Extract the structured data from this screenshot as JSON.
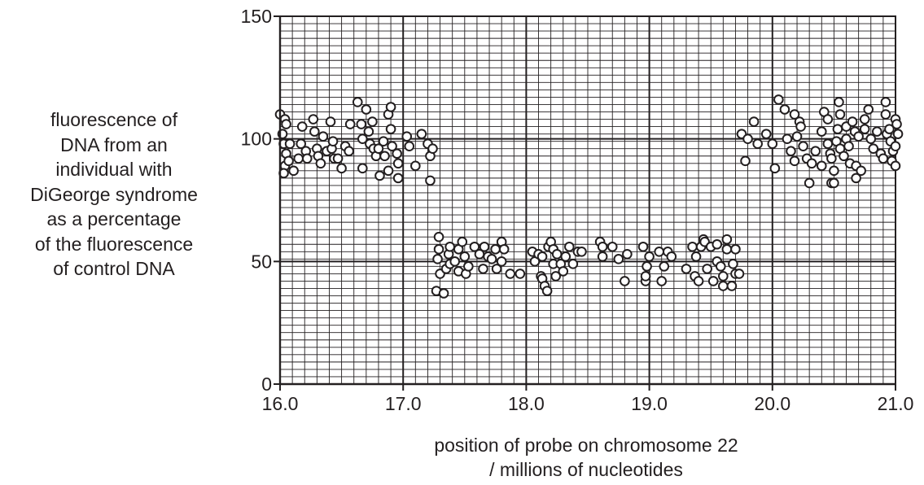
{
  "chart_data": {
    "type": "scatter",
    "title": "",
    "ylabel_lines": [
      "fluorescence of",
      "DNA from an",
      "individual with",
      "DiGeorge syndrome",
      "as a percentage",
      "of the fluorescence",
      "of control DNA"
    ],
    "xlabel_lines": [
      "position of probe on chromosome 22",
      "/ millions of nucleotides"
    ],
    "xlim": [
      16.0,
      21.0
    ],
    "ylim": [
      0,
      150
    ],
    "x_ticks": [
      16.0,
      17.0,
      18.0,
      19.0,
      20.0,
      21.0
    ],
    "x_tick_labels": [
      "16.0",
      "17.0",
      "18.0",
      "19.0",
      "20.0",
      "21.0"
    ],
    "y_ticks": [
      0,
      50,
      100,
      150
    ],
    "y_tick_labels": [
      "0",
      "50",
      "100",
      "150"
    ],
    "grid": true,
    "marker": "open-circle",
    "series": [
      {
        "points": [
          [
            16.0,
            110
          ],
          [
            16.02,
            102
          ],
          [
            16.03,
            98
          ],
          [
            16.04,
            108
          ],
          [
            16.05,
            106
          ],
          [
            16.05,
            94
          ],
          [
            16.04,
            89
          ],
          [
            16.03,
            86
          ],
          [
            16.07,
            91
          ],
          [
            16.08,
            98
          ],
          [
            16.11,
            87
          ],
          [
            16.15,
            92
          ],
          [
            16.17,
            98
          ],
          [
            16.18,
            105
          ],
          [
            16.21,
            95
          ],
          [
            16.22,
            92
          ],
          [
            16.27,
            108
          ],
          [
            16.28,
            103
          ],
          [
            16.3,
            96
          ],
          [
            16.31,
            93
          ],
          [
            16.33,
            90
          ],
          [
            16.35,
            101
          ],
          [
            16.38,
            95
          ],
          [
            16.41,
            107
          ],
          [
            16.42,
            96
          ],
          [
            16.44,
            92
          ],
          [
            16.43,
            99
          ],
          [
            16.47,
            92
          ],
          [
            16.5,
            88
          ],
          [
            16.53,
            97
          ],
          [
            16.57,
            106
          ],
          [
            16.56,
            95
          ],
          [
            16.63,
            115
          ],
          [
            16.66,
            106
          ],
          [
            16.67,
            100
          ],
          [
            16.67,
            88
          ],
          [
            16.7,
            112
          ],
          [
            16.72,
            103
          ],
          [
            16.73,
            98
          ],
          [
            16.75,
            107
          ],
          [
            16.76,
            96
          ],
          [
            16.78,
            93
          ],
          [
            16.8,
            96
          ],
          [
            16.81,
            85
          ],
          [
            16.84,
            99
          ],
          [
            16.85,
            93
          ],
          [
            16.88,
            110
          ],
          [
            16.9,
            113
          ],
          [
            16.9,
            104
          ],
          [
            16.88,
            87
          ],
          [
            16.91,
            97
          ],
          [
            16.95,
            94
          ],
          [
            16.96,
            90
          ],
          [
            16.96,
            84
          ],
          [
            17.03,
            101
          ],
          [
            17.05,
            97
          ],
          [
            17.1,
            89
          ],
          [
            17.15,
            102
          ],
          [
            17.2,
            98
          ],
          [
            17.22,
            93
          ],
          [
            17.22,
            83
          ],
          [
            17.24,
            96
          ],
          [
            17.29,
            60
          ],
          [
            17.29,
            55
          ],
          [
            17.28,
            51
          ],
          [
            17.3,
            45
          ],
          [
            17.27,
            38
          ],
          [
            17.33,
            37
          ],
          [
            17.35,
            47
          ],
          [
            17.37,
            53
          ],
          [
            17.38,
            56
          ],
          [
            17.38,
            49
          ],
          [
            17.42,
            50
          ],
          [
            17.45,
            55
          ],
          [
            17.45,
            46
          ],
          [
            17.48,
            58
          ],
          [
            17.5,
            52
          ],
          [
            17.51,
            45
          ],
          [
            17.53,
            48
          ],
          [
            17.58,
            56
          ],
          [
            17.62,
            53
          ],
          [
            17.65,
            47
          ],
          [
            17.66,
            56
          ],
          [
            17.69,
            52
          ],
          [
            17.72,
            51
          ],
          [
            17.75,
            55
          ],
          [
            17.76,
            47
          ],
          [
            17.8,
            58
          ],
          [
            17.82,
            55
          ],
          [
            17.8,
            50
          ],
          [
            17.87,
            45
          ],
          [
            17.95,
            45
          ],
          [
            18.05,
            54
          ],
          [
            18.07,
            50
          ],
          [
            18.1,
            53
          ],
          [
            18.12,
            44
          ],
          [
            18.13,
            52
          ],
          [
            18.13,
            43
          ],
          [
            18.15,
            40
          ],
          [
            18.17,
            38
          ],
          [
            18.18,
            56
          ],
          [
            18.2,
            58
          ],
          [
            18.22,
            55
          ],
          [
            18.22,
            49
          ],
          [
            18.24,
            44
          ],
          [
            18.25,
            53
          ],
          [
            18.28,
            49
          ],
          [
            18.3,
            46
          ],
          [
            18.32,
            52
          ],
          [
            18.35,
            56
          ],
          [
            18.38,
            49
          ],
          [
            18.42,
            54
          ],
          [
            18.45,
            54
          ],
          [
            18.6,
            58
          ],
          [
            18.62,
            56
          ],
          [
            18.62,
            52
          ],
          [
            18.7,
            56
          ],
          [
            18.75,
            51
          ],
          [
            18.8,
            42
          ],
          [
            18.82,
            53
          ],
          [
            18.95,
            56
          ],
          [
            18.97,
            42
          ],
          [
            18.97,
            44
          ],
          [
            18.98,
            48
          ],
          [
            19.0,
            52
          ],
          [
            19.08,
            54
          ],
          [
            19.1,
            42
          ],
          [
            19.12,
            48
          ],
          [
            19.15,
            54
          ],
          [
            19.18,
            52
          ],
          [
            19.3,
            47
          ],
          [
            19.35,
            56
          ],
          [
            19.37,
            44
          ],
          [
            19.38,
            52
          ],
          [
            19.4,
            42
          ],
          [
            19.42,
            56
          ],
          [
            19.44,
            59
          ],
          [
            19.45,
            58
          ],
          [
            19.47,
            47
          ],
          [
            19.5,
            56
          ],
          [
            19.52,
            42
          ],
          [
            19.55,
            50
          ],
          [
            19.55,
            57
          ],
          [
            19.58,
            48
          ],
          [
            19.6,
            44
          ],
          [
            19.6,
            40
          ],
          [
            19.63,
            59
          ],
          [
            19.63,
            55
          ],
          [
            19.67,
            40
          ],
          [
            19.68,
            49
          ],
          [
            19.7,
            55
          ],
          [
            19.7,
            45
          ],
          [
            19.73,
            45
          ],
          [
            19.75,
            102
          ],
          [
            19.78,
            91
          ],
          [
            19.8,
            100
          ],
          [
            19.85,
            107
          ],
          [
            19.88,
            98
          ],
          [
            19.95,
            102
          ],
          [
            20.0,
            98
          ],
          [
            20.02,
            88
          ],
          [
            20.05,
            116
          ],
          [
            20.1,
            112
          ],
          [
            20.12,
            100
          ],
          [
            20.15,
            95
          ],
          [
            20.18,
            110
          ],
          [
            20.18,
            91
          ],
          [
            20.2,
            101
          ],
          [
            20.22,
            107
          ],
          [
            20.23,
            105
          ],
          [
            20.25,
            97
          ],
          [
            20.28,
            92
          ],
          [
            20.3,
            82
          ],
          [
            20.32,
            90
          ],
          [
            20.35,
            95
          ],
          [
            20.4,
            103
          ],
          [
            20.4,
            89
          ],
          [
            20.42,
            111
          ],
          [
            20.45,
            108
          ],
          [
            20.45,
            98
          ],
          [
            20.47,
            94
          ],
          [
            20.48,
            92
          ],
          [
            20.48,
            82
          ],
          [
            20.5,
            82
          ],
          [
            20.5,
            87
          ],
          [
            20.52,
            99
          ],
          [
            20.53,
            104
          ],
          [
            20.54,
            115
          ],
          [
            20.55,
            110
          ],
          [
            20.55,
            96
          ],
          [
            20.58,
            93
          ],
          [
            20.6,
            105
          ],
          [
            20.6,
            100
          ],
          [
            20.62,
            97
          ],
          [
            20.63,
            90
          ],
          [
            20.65,
            107
          ],
          [
            20.67,
            103
          ],
          [
            20.68,
            89
          ],
          [
            20.68,
            84
          ],
          [
            20.7,
            101
          ],
          [
            20.72,
            87
          ],
          [
            20.75,
            108
          ],
          [
            20.75,
            104
          ],
          [
            20.78,
            112
          ],
          [
            20.8,
            100
          ],
          [
            20.82,
            96
          ],
          [
            20.85,
            103
          ],
          [
            20.88,
            94
          ],
          [
            20.9,
            92
          ],
          [
            20.92,
            115
          ],
          [
            20.92,
            110
          ],
          [
            20.93,
            102
          ],
          [
            20.95,
            104
          ],
          [
            20.96,
            99
          ],
          [
            20.97,
            91
          ],
          [
            20.98,
            95
          ],
          [
            21.0,
            108
          ],
          [
            21.0,
            97
          ],
          [
            21.0,
            89
          ],
          [
            21.01,
            106
          ],
          [
            21.02,
            102
          ]
        ]
      }
    ]
  }
}
